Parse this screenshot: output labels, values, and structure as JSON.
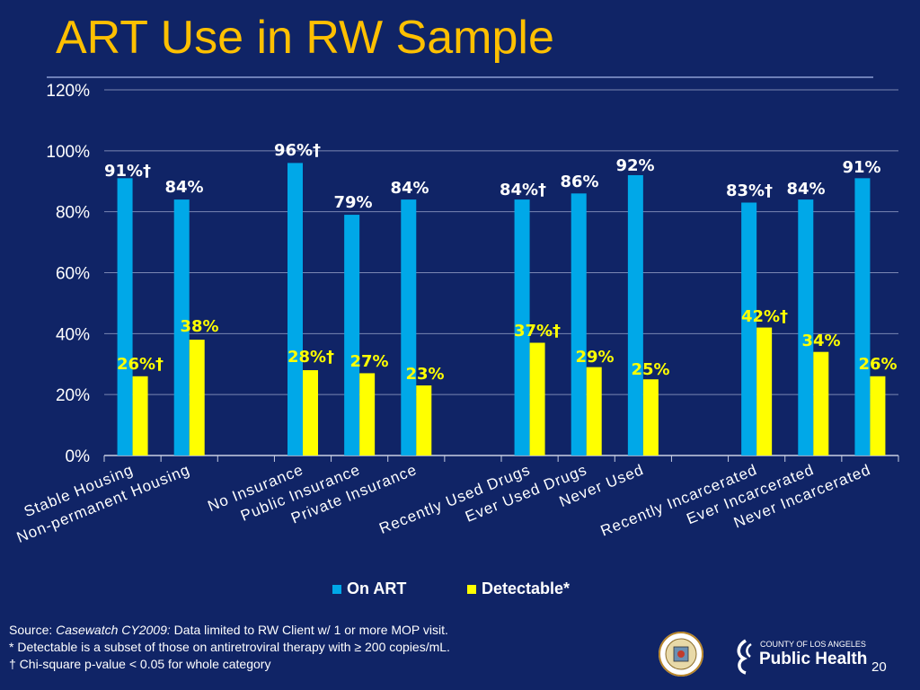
{
  "slide": {
    "title": "ART Use in RW Sample",
    "page_number": "20"
  },
  "footnotes": {
    "source_prefix": "Source:  ",
    "source_italic": "Casewatch CY2009:",
    "source_rest": " Data limited to RW Client w/ 1 or more MOP visit.",
    "note_detectable": "* Detectable is a subset of those on antiretroviral therapy with ≥ 200 copies/mL.",
    "note_chisq": "† Chi-square p-value < 0.05 for whole category"
  },
  "logos": {
    "seal_text": "COUNTY OF LOS ANGELES CALIFORNIA",
    "brand_sub": "COUNTY OF LOS ANGELES",
    "brand_main": "Public Health"
  },
  "colors": {
    "background": "#102466",
    "title": "#ffc000",
    "on_art": "#00a8e8",
    "detectable": "#ffff00",
    "gridline": "#7a86b3"
  },
  "chart_data": {
    "type": "bar",
    "title": "",
    "xlabel": "",
    "ylabel": "",
    "ylim": [
      0,
      120
    ],
    "yticks": [
      "0%",
      "20%",
      "40%",
      "60%",
      "80%",
      "100%",
      "120%"
    ],
    "grid": true,
    "legend_position": "bottom",
    "categories": [
      "Stable Housing",
      "Non-permanent Housing",
      "",
      "No Insurance",
      "Public Insurance",
      "Private Insurance",
      "",
      "Recently Used Drugs",
      "Ever Used Drugs",
      "Never Used",
      "",
      "Recently Incarcerated",
      "Ever Incarcerated",
      "Never Incarcerated"
    ],
    "series": [
      {
        "name": "On ART",
        "values": [
          91,
          84,
          null,
          96,
          79,
          84,
          null,
          84,
          86,
          92,
          null,
          83,
          84,
          91
        ],
        "labels": [
          "91%†",
          "84%",
          "",
          "96%†",
          "79%",
          "84%",
          "",
          "84%†",
          "86%",
          "92%",
          "",
          "83%†",
          "84%",
          "91%"
        ]
      },
      {
        "name": "Detectable*",
        "values": [
          26,
          38,
          null,
          28,
          27,
          23,
          null,
          37,
          29,
          25,
          null,
          42,
          34,
          26
        ],
        "labels": [
          "26%†",
          "38%",
          "",
          "28%†",
          "27%",
          "23%",
          "",
          "37%†",
          "29%",
          "25%",
          "",
          "42%†",
          "34%",
          "26%"
        ]
      }
    ]
  }
}
